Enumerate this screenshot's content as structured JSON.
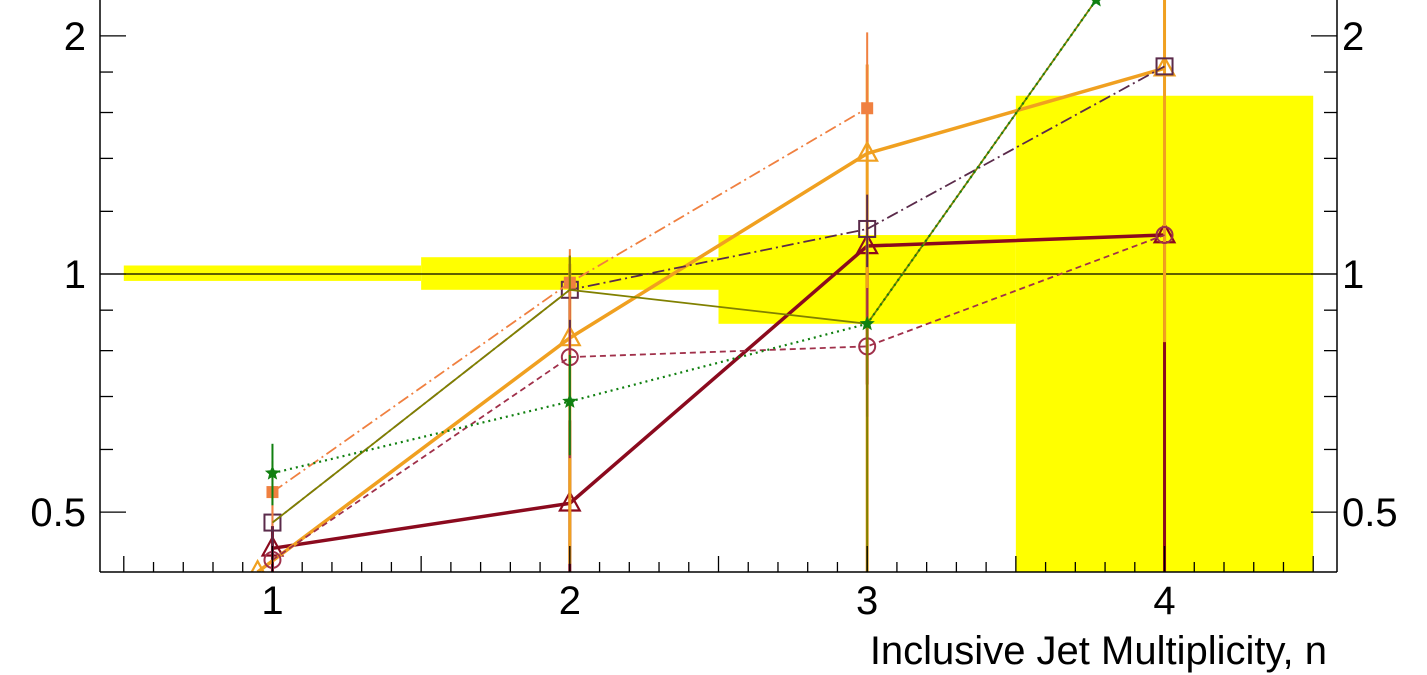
{
  "chart_data": {
    "type": "line",
    "xlabel": "Inclusive Jet Multiplicity, n",
    "ylabel": "",
    "xlim": [
      0.42,
      4.58
    ],
    "ylim": [
      0.42,
      2.22
    ],
    "y_scale": "log",
    "x_ticks": [
      1,
      2,
      3,
      4
    ],
    "x_tick_labels": [
      "1",
      "2",
      "3",
      "4"
    ],
    "y_ticks": [
      0.5,
      1,
      2
    ],
    "y_tick_labels": [
      "0.5",
      "1",
      "2"
    ],
    "reference_line": 1,
    "uncertainty_band": {
      "color": "#ffff00",
      "bins": [
        {
          "x_low": 0.5,
          "x_high": 1.5,
          "low": 0.98,
          "high": 1.025
        },
        {
          "x_low": 1.5,
          "x_high": 2.5,
          "low": 0.955,
          "high": 1.05
        },
        {
          "x_low": 2.5,
          "x_high": 3.5,
          "low": 0.865,
          "high": 1.12
        },
        {
          "x_low": 3.5,
          "x_high": 4.5,
          "low": 0.42,
          "high": 1.68
        }
      ]
    },
    "series": [
      {
        "color": "#8b0a1e",
        "dash": "",
        "width": 3.5,
        "marker": "open-triangle",
        "x": [
          1,
          2,
          3,
          4
        ],
        "y": [
          0.45,
          0.513,
          1.085,
          1.12
        ],
        "err_low": [
          0.06,
          0.2,
          0.36,
          0.9
        ],
        "err_high": [
          0.03,
          0.14,
          0.0,
          0.0
        ]
      },
      {
        "color": "#f0a020",
        "dash": "",
        "width": 3.5,
        "marker": "open-triangle",
        "x": [
          0.95,
          2,
          3,
          4
        ],
        "y": [
          0.42,
          0.83,
          1.42,
          1.82
        ],
        "err_low": [
          0.0,
          0.4,
          1.0,
          1.0
        ],
        "err_high": [
          0.0,
          0.2,
          0.42,
          0.8
        ]
      },
      {
        "color": "#a0304a",
        "dash": "6,4",
        "width": 1.8,
        "marker": "open-circle",
        "x": [
          1,
          2,
          3,
          4
        ],
        "y": [
          0.435,
          0.785,
          0.81,
          1.12
        ],
        "err_low": [
          0.05,
          0.2,
          0.15,
          0.0
        ],
        "err_high": [
          0.05,
          0.2,
          0.15,
          0.0
        ]
      },
      {
        "color": "#5a2a4a",
        "dash": "12,4,2,4",
        "width": 1.8,
        "marker": "open-square",
        "x": [
          1,
          2,
          3,
          4
        ],
        "y": [
          0.485,
          0.955,
          1.14,
          1.83
        ],
        "err_low": [
          0.05,
          0.1,
          0.12,
          0.0
        ],
        "err_high": [
          0.05,
          0.1,
          0.12,
          0.0
        ]
      },
      {
        "color": "#f08040",
        "dash": "12,4,2,4",
        "width": 1.8,
        "marker": "filled-square",
        "x": [
          1,
          2,
          3
        ],
        "y": [
          0.53,
          0.975,
          1.62
        ],
        "err_low": [
          0.05,
          0.1,
          0.15
        ],
        "err_high": [
          0.05,
          0.1,
          0.4
        ]
      },
      {
        "color": "#808000",
        "dash": "",
        "width": 1.8,
        "marker": "",
        "x": [
          1,
          2,
          3,
          3.77
        ],
        "y": [
          0.485,
          0.955,
          0.865,
          2.22
        ],
        "err_low": [
          0.0,
          0.0,
          1.0,
          0.0
        ],
        "err_high": [
          0.0,
          0.1,
          0.0,
          0.0
        ]
      },
      {
        "color": "#108010",
        "dash": "2,4",
        "width": 2.2,
        "marker": "star",
        "x": [
          1,
          2,
          3,
          3.77
        ],
        "y": [
          0.56,
          0.69,
          0.865,
          2.22
        ],
        "err_low": [
          0.05,
          0.1,
          0.0,
          0.0
        ],
        "err_high": [
          0.05,
          0.1,
          0.0,
          0.0
        ]
      }
    ]
  }
}
